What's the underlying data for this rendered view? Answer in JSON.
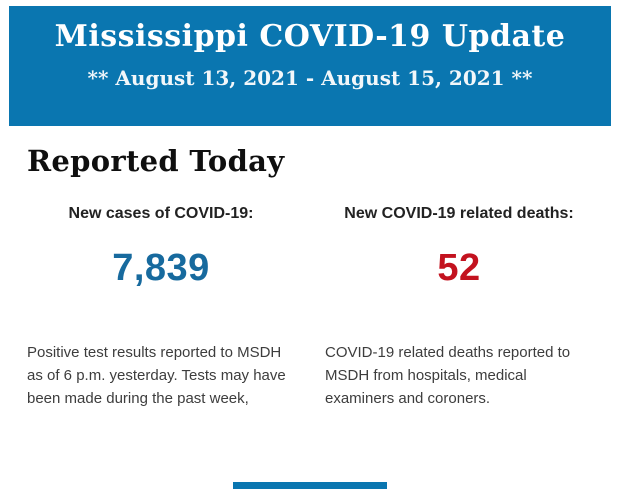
{
  "header": {
    "title": "Mississippi COVID-19 Update",
    "date_range": "** August 13, 2021 - August 15, 2021 **"
  },
  "main": {
    "section_title": "Reported Today",
    "stats": [
      {
        "label": "New cases of COVID-19:",
        "value": "7,839",
        "description": "Positive test results reported to MSDH as of 6 p.m. yesterday. Tests may have been made during the past week,"
      },
      {
        "label": "New COVID-19 related deaths:",
        "value": "52",
        "description": "COVID-19 related deaths reported to MSDH from hospitals, medical examiners and coroners."
      }
    ]
  },
  "colors": {
    "header_bg": "#0a76b0",
    "cases_value": "#176a9e",
    "deaths_value": "#c3121f",
    "heading_text": "#0f0f0f",
    "label_text": "#222222",
    "body_text": "#3d3d3d",
    "page_bg": "#ffffff",
    "accent_bar": "#0a76b0"
  }
}
